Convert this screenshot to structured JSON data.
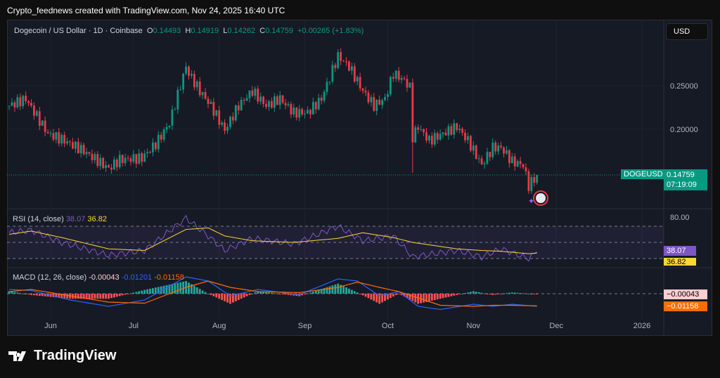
{
  "credit": "Crypto_feednews created with TradingView.com, Nov 24, 2025 16:40 UTC",
  "legend": {
    "symbol": "Dogecoin / US Dollar · 1D · Coinbase",
    "o_label": "O",
    "o": "0.14493",
    "h_label": "H",
    "h": "0.14919",
    "l_label": "L",
    "l": "0.14262",
    "c_label": "C",
    "c": "0.14759",
    "change": "+0.00265 (+1.83%)"
  },
  "currency_button": "USD",
  "last_price": {
    "symbol": "DOGEUSD",
    "price": "0.14759",
    "countdown": "07:19:09"
  },
  "rsi_legend": {
    "title": "RSI (14, close)",
    "value": "38.07",
    "ma": "36.82"
  },
  "macd_legend": {
    "title": "MACD (12, 26, close)",
    "hist": "-0.00043",
    "macd": "-0.01201",
    "signal": "-0.01158"
  },
  "rsi_axis_label": "80.00",
  "macd_tags": {
    "hist": "−0.00043",
    "signal": "−0.01158"
  },
  "brand": "TradingView",
  "colors": {
    "up": "#089981",
    "down": "#f23645",
    "rsi": "#7e57c2",
    "rsi_ma": "#fdd835",
    "macd": "#2962ff",
    "signal": "#ff6d00"
  },
  "chart_data": {
    "type": "candlestick",
    "price_ticks": [
      "0.25000",
      "0.20000"
    ],
    "x_ticks": [
      {
        "label": "Jun",
        "date": "2025-06-01"
      },
      {
        "label": "Jul",
        "date": "2025-07-01"
      },
      {
        "label": "Aug",
        "date": "2025-08-01"
      },
      {
        "label": "Sep",
        "date": "2025-09-01"
      },
      {
        "label": "Oct",
        "date": "2025-10-01"
      },
      {
        "label": "Nov",
        "date": "2025-11-01"
      },
      {
        "label": "Dec",
        "date": "2025-12-01"
      },
      {
        "label": "2026",
        "date": "2026-01-01"
      }
    ],
    "close": [
      [
        "2025-05-17",
        0.227
      ],
      [
        "2025-05-23",
        0.235
      ],
      [
        "2025-05-31",
        0.195
      ],
      [
        "2025-06-06",
        0.187
      ],
      [
        "2025-06-13",
        0.175
      ],
      [
        "2025-06-22",
        0.155
      ],
      [
        "2025-06-26",
        0.165
      ],
      [
        "2025-07-04",
        0.167
      ],
      [
        "2025-07-09",
        0.183
      ],
      [
        "2025-07-14",
        0.207
      ],
      [
        "2025-07-20",
        0.272
      ],
      [
        "2025-07-21",
        0.264
      ],
      [
        "2025-07-25",
        0.244
      ],
      [
        "2025-07-29",
        0.227
      ],
      [
        "2025-08-03",
        0.199
      ],
      [
        "2025-08-08",
        0.227
      ],
      [
        "2025-08-13",
        0.244
      ],
      [
        "2025-08-18",
        0.227
      ],
      [
        "2025-08-23",
        0.235
      ],
      [
        "2025-08-28",
        0.219
      ],
      [
        "2025-09-02",
        0.219
      ],
      [
        "2025-09-07",
        0.235
      ],
      [
        "2025-09-11",
        0.268
      ],
      [
        "2025-09-13",
        0.284
      ],
      [
        "2025-09-17",
        0.272
      ],
      [
        "2025-09-22",
        0.244
      ],
      [
        "2025-09-26",
        0.227
      ],
      [
        "2025-09-30",
        0.235
      ],
      [
        "2025-10-03",
        0.264
      ],
      [
        "2025-10-07",
        0.256
      ],
      [
        "2025-10-09",
        0.248
      ],
      [
        "2025-10-10",
        0.191
      ],
      [
        "2025-10-12",
        0.203
      ],
      [
        "2025-10-16",
        0.187
      ],
      [
        "2025-10-21",
        0.195
      ],
      [
        "2025-10-26",
        0.203
      ],
      [
        "2025-10-30",
        0.187
      ],
      [
        "2025-11-04",
        0.159
      ],
      [
        "2025-11-08",
        0.179
      ],
      [
        "2025-11-11",
        0.179
      ],
      [
        "2025-11-15",
        0.163
      ],
      [
        "2025-11-19",
        0.159
      ],
      [
        "2025-11-21",
        0.135
      ],
      [
        "2025-11-24",
        0.14759
      ]
    ],
    "rsi": [
      [
        "2025-05-17",
        62,
        60
      ],
      [
        "2025-05-25",
        65,
        64
      ],
      [
        "2025-06-05",
        50,
        56
      ],
      [
        "2025-06-22",
        34,
        42
      ],
      [
        "2025-07-05",
        40,
        40
      ],
      [
        "2025-07-20",
        80,
        66
      ],
      [
        "2025-07-28",
        58,
        68
      ],
      [
        "2025-08-03",
        40,
        58
      ],
      [
        "2025-08-13",
        55,
        52
      ],
      [
        "2025-08-28",
        48,
        50
      ],
      [
        "2025-09-13",
        70,
        55
      ],
      [
        "2025-09-22",
        52,
        62
      ],
      [
        "2025-10-03",
        58,
        56
      ],
      [
        "2025-10-10",
        32,
        50
      ],
      [
        "2025-10-26",
        40,
        42
      ],
      [
        "2025-11-04",
        32,
        40
      ],
      [
        "2025-11-11",
        42,
        39
      ],
      [
        "2025-11-21",
        30,
        36
      ],
      [
        "2025-11-24",
        38.07,
        36.82
      ]
    ],
    "macd": [
      [
        "2025-05-17",
        0.004,
        0.002
      ],
      [
        "2025-05-25",
        0.003,
        0.004
      ],
      [
        "2025-06-08",
        -0.006,
        -0.002
      ],
      [
        "2025-06-22",
        -0.012,
        -0.008
      ],
      [
        "2025-07-05",
        -0.006,
        -0.009
      ],
      [
        "2025-07-20",
        0.016,
        0.006
      ],
      [
        "2025-07-28",
        0.012,
        0.012
      ],
      [
        "2025-08-05",
        -0.002,
        0.006
      ],
      [
        "2025-08-15",
        0.004,
        0.002
      ],
      [
        "2025-08-30",
        -0.001,
        0.001
      ],
      [
        "2025-09-13",
        0.014,
        0.006
      ],
      [
        "2025-09-20",
        0.012,
        0.011
      ],
      [
        "2025-09-28",
        -0.002,
        0.006
      ],
      [
        "2025-10-05",
        0.002,
        0.002
      ],
      [
        "2025-10-12",
        -0.012,
        -0.004
      ],
      [
        "2025-10-20",
        -0.015,
        -0.011
      ],
      [
        "2025-11-01",
        -0.01,
        -0.012
      ],
      [
        "2025-11-08",
        -0.012,
        -0.011
      ],
      [
        "2025-11-15",
        -0.01,
        -0.011
      ],
      [
        "2025-11-24",
        -0.01201,
        -0.01158
      ]
    ],
    "rsi_levels": [
      70,
      50,
      30
    ]
  }
}
